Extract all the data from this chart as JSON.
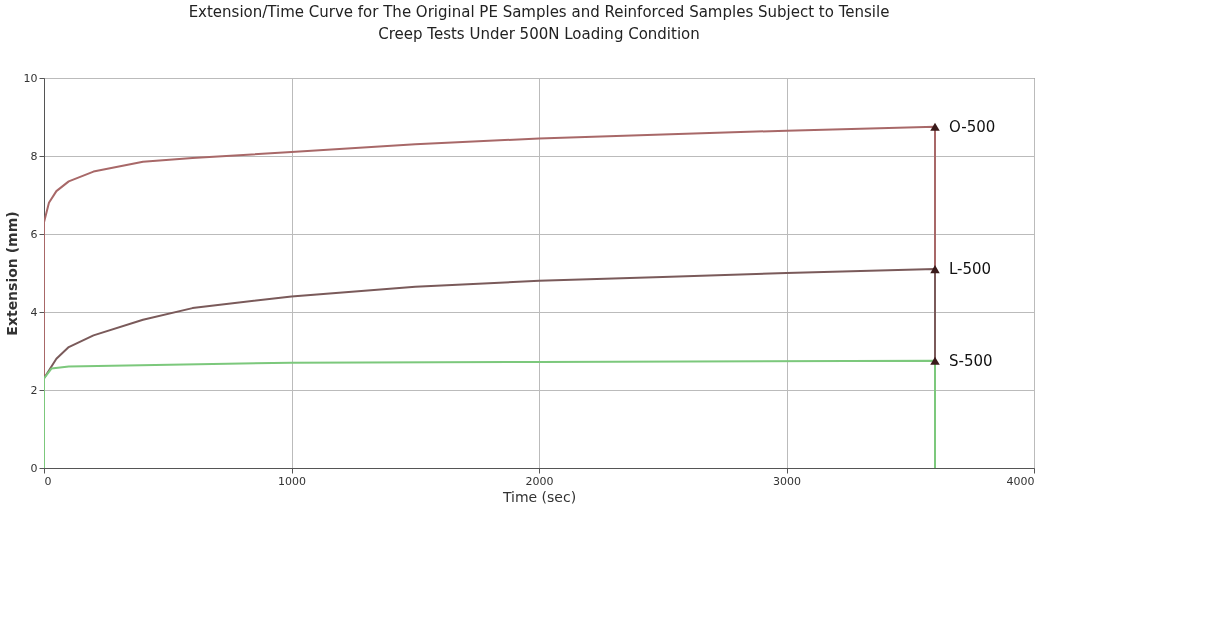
{
  "chart_data": {
    "type": "line",
    "title": "Extension/Time Curve for The Original PE Samples and Reinforced Samples Subject to Tensile Creep Tests Under 500N Loading Condition",
    "xlabel": "Time (sec)",
    "ylabel": "Extension (mm)",
    "xlim": [
      0,
      4000
    ],
    "xticks": [
      0,
      1000,
      2000,
      3000,
      4000
    ],
    "ylim": [
      0,
      10
    ],
    "yticks": [
      0,
      2,
      4,
      6,
      8,
      10
    ],
    "grid": true,
    "legend": false,
    "line_style": "solid",
    "series": [
      {
        "name": "O-500",
        "color": "#a86868",
        "x": [
          0,
          0,
          20,
          50,
          100,
          200,
          400,
          600,
          1000,
          1500,
          2000,
          2500,
          3000,
          3600,
          3600
        ],
        "values": [
          0,
          6.3,
          6.8,
          7.1,
          7.35,
          7.6,
          7.85,
          7.95,
          8.1,
          8.3,
          8.45,
          8.55,
          8.65,
          8.75,
          0
        ]
      },
      {
        "name": "L-500",
        "color": "#7a5a5a",
        "x": [
          0,
          0,
          50,
          100,
          200,
          400,
          600,
          1000,
          1500,
          2000,
          2500,
          3000,
          3600,
          3600
        ],
        "values": [
          0,
          2.3,
          2.8,
          3.1,
          3.4,
          3.8,
          4.1,
          4.4,
          4.65,
          4.8,
          4.9,
          5.0,
          5.1,
          0
        ]
      },
      {
        "name": "S-500",
        "color": "#7cc87c",
        "x": [
          0,
          0,
          30,
          100,
          1000,
          2000,
          3600,
          3600
        ],
        "values": [
          0,
          2.3,
          2.55,
          2.6,
          2.7,
          2.72,
          2.75,
          0
        ]
      }
    ]
  }
}
